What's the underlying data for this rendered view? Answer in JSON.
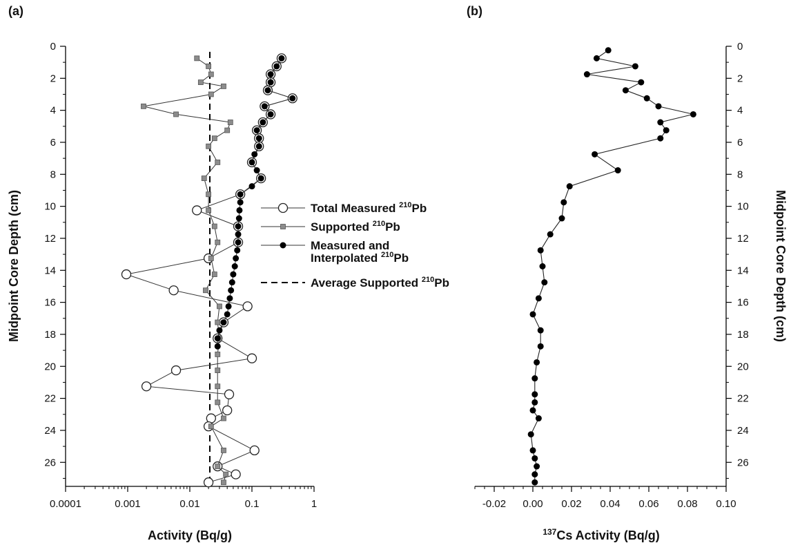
{
  "chart_data": [
    {
      "type": "scatter",
      "panel_label": "(a)",
      "xlabel": "Activity (Bq/g)",
      "ylabel": "Midpoint Core Depth (cm)",
      "x_scale": "log",
      "xlim": [
        0.0001,
        1
      ],
      "ylim": [
        27.5,
        0
      ],
      "xticks": [
        "0.0001",
        "0.001",
        "0.01",
        "0.1",
        "1"
      ],
      "yticks": [
        "0",
        "2",
        "4",
        "6",
        "8",
        "10",
        "12",
        "14",
        "16",
        "18",
        "20",
        "22",
        "24",
        "26"
      ],
      "legend": {
        "placement": "center-right",
        "entries": [
          {
            "marker": "open-circle",
            "line": "solid",
            "label": "Total Measured ",
            "sup": "210",
            "post": "Pb"
          },
          {
            "marker": "gray-square",
            "line": "solid",
            "label": "Supported ",
            "sup": "210",
            "post": "Pb"
          },
          {
            "marker": "filled-circle",
            "line": "solid",
            "label": "Measured and",
            "label2": "Interpolated ",
            "sup": "210",
            "post": "Pb"
          },
          {
            "marker": "none",
            "line": "dashed",
            "label": "Average Supported ",
            "sup": "210",
            "post": "Pb"
          }
        ]
      },
      "series": [
        {
          "key": "total",
          "style": "open-circle",
          "points": [
            [
              0.3,
              0.75
            ],
            [
              0.25,
              1.25
            ],
            [
              0.2,
              1.75
            ],
            [
              0.2,
              2.25
            ],
            [
              0.18,
              2.75
            ],
            [
              0.45,
              3.25
            ],
            [
              0.16,
              3.75
            ],
            [
              0.2,
              4.25
            ],
            [
              0.15,
              4.75
            ],
            [
              0.12,
              5.25
            ],
            [
              0.13,
              5.75
            ],
            [
              0.13,
              6.25
            ],
            [
              0.1,
              7.25
            ],
            [
              0.14,
              8.25
            ],
            [
              0.065,
              9.25
            ],
            [
              0.013,
              10.25
            ],
            [
              0.06,
              11.25
            ],
            [
              0.06,
              12.25
            ],
            [
              0.02,
              13.25
            ],
            [
              0.00095,
              14.25
            ],
            [
              0.0055,
              15.25
            ],
            [
              0.085,
              16.25
            ],
            [
              0.035,
              17.25
            ],
            [
              0.028,
              18.25
            ],
            [
              0.1,
              19.5
            ],
            [
              0.006,
              20.25
            ],
            [
              0.002,
              21.25
            ],
            [
              0.043,
              21.75
            ],
            [
              0.04,
              22.75
            ],
            [
              0.022,
              23.25
            ],
            [
              0.02,
              23.75
            ],
            [
              0.11,
              25.25
            ],
            [
              0.028,
              26.25
            ],
            [
              0.055,
              26.75
            ],
            [
              0.02,
              27.25
            ]
          ]
        },
        {
          "key": "supported",
          "style": "gray-square",
          "points": [
            [
              0.013,
              0.75
            ],
            [
              0.02,
              1.25
            ],
            [
              0.022,
              1.75
            ],
            [
              0.015,
              2.25
            ],
            [
              0.035,
              2.5
            ],
            [
              0.022,
              3.0
            ],
            [
              0.0018,
              3.75
            ],
            [
              0.006,
              4.25
            ],
            [
              0.045,
              4.75
            ],
            [
              0.04,
              5.25
            ],
            [
              0.025,
              5.75
            ],
            [
              0.02,
              6.25
            ],
            [
              0.028,
              7.25
            ],
            [
              0.017,
              8.25
            ],
            [
              0.02,
              9.25
            ],
            [
              0.02,
              10.25
            ],
            [
              0.025,
              11.25
            ],
            [
              0.028,
              12.25
            ],
            [
              0.022,
              13.25
            ],
            [
              0.025,
              14.25
            ],
            [
              0.018,
              15.25
            ],
            [
              0.03,
              16.25
            ],
            [
              0.028,
              17.25
            ],
            [
              0.03,
              18.25
            ],
            [
              0.028,
              19.25
            ],
            [
              0.028,
              20.25
            ],
            [
              0.028,
              21.25
            ],
            [
              0.028,
              22.25
            ],
            [
              0.035,
              23.25
            ],
            [
              0.022,
              23.75
            ],
            [
              0.035,
              25.25
            ],
            [
              0.028,
              26.25
            ],
            [
              0.038,
              26.75
            ],
            [
              0.035,
              27.25
            ]
          ]
        },
        {
          "key": "interpolated",
          "style": "filled-circle",
          "points": [
            [
              0.3,
              0.75
            ],
            [
              0.25,
              1.25
            ],
            [
              0.2,
              1.75
            ],
            [
              0.2,
              2.25
            ],
            [
              0.18,
              2.75
            ],
            [
              0.45,
              3.25
            ],
            [
              0.16,
              3.75
            ],
            [
              0.2,
              4.25
            ],
            [
              0.15,
              4.75
            ],
            [
              0.12,
              5.25
            ],
            [
              0.13,
              5.75
            ],
            [
              0.13,
              6.25
            ],
            [
              0.11,
              6.75
            ],
            [
              0.1,
              7.25
            ],
            [
              0.12,
              7.75
            ],
            [
              0.14,
              8.25
            ],
            [
              0.1,
              8.75
            ],
            [
              0.065,
              9.25
            ],
            [
              0.065,
              9.75
            ],
            [
              0.063,
              10.25
            ],
            [
              0.062,
              10.75
            ],
            [
              0.06,
              11.25
            ],
            [
              0.06,
              11.75
            ],
            [
              0.06,
              12.25
            ],
            [
              0.058,
              12.75
            ],
            [
              0.055,
              13.25
            ],
            [
              0.053,
              13.75
            ],
            [
              0.05,
              14.25
            ],
            [
              0.048,
              14.75
            ],
            [
              0.046,
              15.25
            ],
            [
              0.044,
              15.75
            ],
            [
              0.042,
              16.25
            ],
            [
              0.04,
              16.75
            ],
            [
              0.035,
              17.25
            ],
            [
              0.03,
              17.75
            ],
            [
              0.028,
              18.25
            ],
            [
              0.028,
              18.75
            ]
          ]
        }
      ],
      "reference_line": {
        "style": "dashed",
        "x": 0.021
      }
    },
    {
      "type": "line",
      "panel_label": "(b)",
      "xlabel_sup": "137",
      "xlabel": "Cs Activity (Bq/g)",
      "ylabel": "Midpoint Core Depth (cm)",
      "xlim": [
        -0.03,
        0.1
      ],
      "ylim": [
        27.5,
        0
      ],
      "xticks": [
        "-0.02",
        "0.00",
        "0.02",
        "0.04",
        "0.06",
        "0.08",
        "0.10"
      ],
      "yticks": [
        "0",
        "2",
        "4",
        "6",
        "8",
        "10",
        "12",
        "14",
        "16",
        "18",
        "20",
        "22",
        "24",
        "26"
      ],
      "series": [
        {
          "key": "cs137",
          "style": "filled-circle",
          "points": [
            [
              0.039,
              0.25
            ],
            [
              0.033,
              0.75
            ],
            [
              0.053,
              1.25
            ],
            [
              0.028,
              1.75
            ],
            [
              0.056,
              2.25
            ],
            [
              0.048,
              2.75
            ],
            [
              0.059,
              3.25
            ],
            [
              0.065,
              3.75
            ],
            [
              0.083,
              4.25
            ],
            [
              0.066,
              4.75
            ],
            [
              0.069,
              5.25
            ],
            [
              0.066,
              5.75
            ],
            [
              0.032,
              6.75
            ],
            [
              0.044,
              7.75
            ],
            [
              0.019,
              8.75
            ],
            [
              0.016,
              9.75
            ],
            [
              0.015,
              10.75
            ],
            [
              0.009,
              11.75
            ],
            [
              0.004,
              12.75
            ],
            [
              0.005,
              13.75
            ],
            [
              0.006,
              14.75
            ],
            [
              0.003,
              15.75
            ],
            [
              0.0,
              16.75
            ],
            [
              0.004,
              17.75
            ],
            [
              0.004,
              18.75
            ],
            [
              0.002,
              19.75
            ],
            [
              0.001,
              20.75
            ],
            [
              0.001,
              21.75
            ],
            [
              0.001,
              22.25
            ],
            [
              0.0,
              22.75
            ],
            [
              0.003,
              23.25
            ],
            [
              -0.001,
              24.25
            ],
            [
              0.0,
              25.25
            ],
            [
              0.001,
              25.75
            ],
            [
              0.002,
              26.25
            ],
            [
              0.001,
              26.75
            ],
            [
              0.001,
              27.25
            ]
          ]
        }
      ]
    }
  ]
}
